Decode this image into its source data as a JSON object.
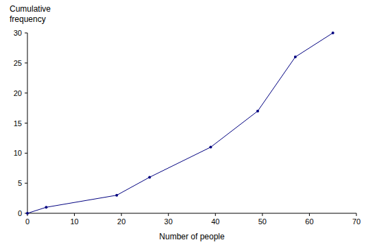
{
  "chart_data": {
    "type": "line",
    "y_label": "Cumulative frequency",
    "x_label": "Number of people",
    "x": [
      0,
      4,
      19,
      26,
      39,
      49,
      57,
      65
    ],
    "values": [
      0,
      1,
      3,
      6,
      11,
      17,
      26,
      30
    ],
    "color": "#000080",
    "marker": "circle",
    "xlim": [
      0,
      70
    ],
    "xticks": [
      0,
      10,
      20,
      30,
      40,
      50,
      60,
      70
    ],
    "ylim": [
      0,
      30
    ],
    "yticks": [
      0,
      5,
      10,
      15,
      20,
      25,
      30
    ],
    "grid": false
  }
}
